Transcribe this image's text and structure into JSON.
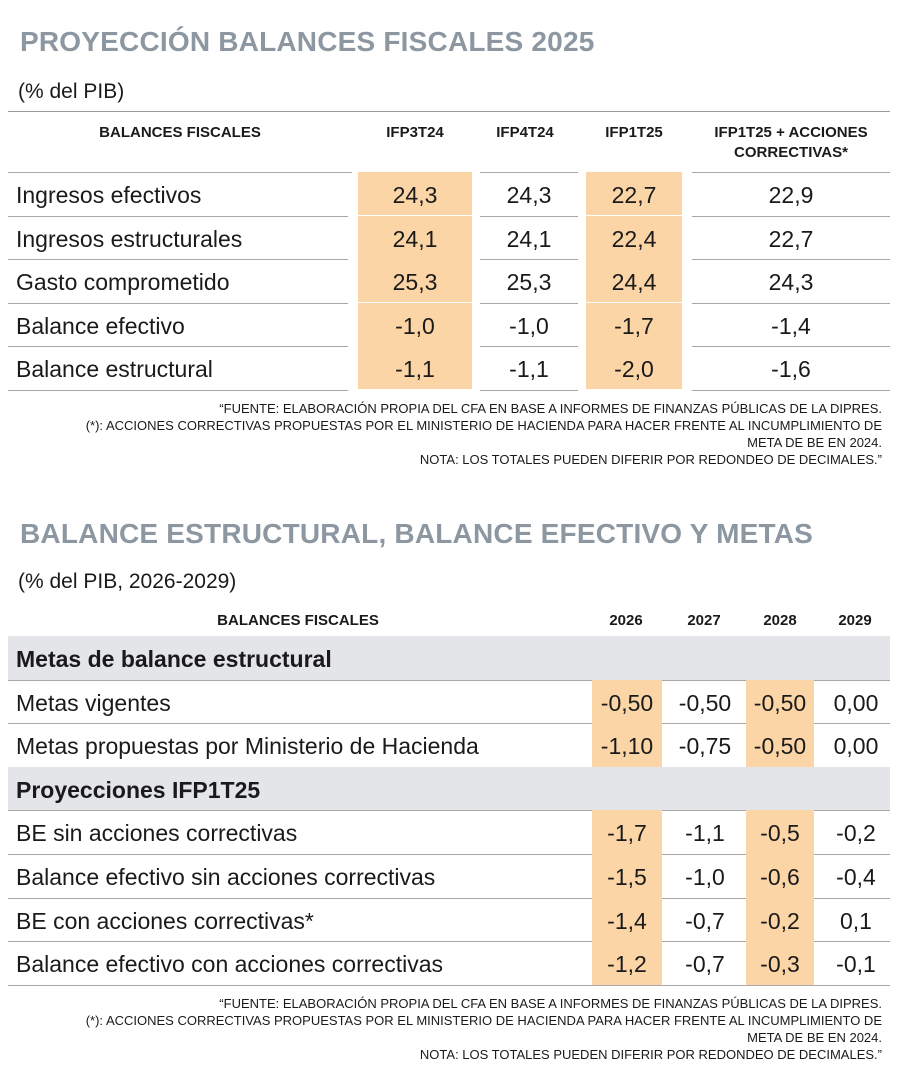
{
  "section1": {
    "title": "PROYECCIÓN BALANCES FISCALES 2025",
    "subtitle": "(% del PIB)",
    "headers": [
      "BALANCES FISCALES",
      "IFP3T24",
      "IFP4T24",
      "IFP1T25",
      "IFP1T25 + ACCIONES CORRECTIVAS*"
    ],
    "rows": [
      {
        "label": "Ingresos efectivos",
        "values": [
          "24,3",
          "24,3",
          "22,7",
          "22,9"
        ]
      },
      {
        "label": "Ingresos estructurales",
        "values": [
          "24,1",
          "24,1",
          "22,4",
          "22,7"
        ]
      },
      {
        "label": "Gasto comprometido",
        "values": [
          "25,3",
          "25,3",
          "24,4",
          "24,3"
        ]
      },
      {
        "label": "Balance efectivo",
        "values": [
          "-1,0",
          "-1,0",
          "-1,7",
          "-1,4"
        ]
      },
      {
        "label": "Balance estructural",
        "values": [
          "-1,1",
          "-1,1",
          "-2,0",
          "-1,6"
        ]
      }
    ],
    "notes": [
      "“FUENTE: ELABORACIÓN PROPIA DEL CFA EN BASE A INFORMES DE FINANZAS PÚBLICAS DE LA DIPRES.",
      "(*): ACCIONES CORRECTIVAS PROPUESTAS POR EL MINISTERIO DE HACIENDA PARA HACER FRENTE AL INCUMPLIMIENTO DE",
      "META DE BE EN 2024.",
      "NOTA: LOS TOTALES PUEDEN DIFERIR POR REDONDEO DE DECIMALES.”"
    ]
  },
  "section2": {
    "title": "BALANCE ESTRUCTURAL, BALANCE EFECTIVO Y METAS",
    "subtitle": "(% del PIB, 2026-2029)",
    "headers": [
      "BALANCES FISCALES",
      "2026",
      "2027",
      "2028",
      "2029"
    ],
    "groups": [
      {
        "title": "Metas de balance estructural",
        "rows": [
          {
            "label": "Metas vigentes",
            "values": [
              "-0,50",
              "-0,50",
              "-0,50",
              "0,00"
            ]
          },
          {
            "label": "Metas propuestas por Ministerio de Hacienda",
            "values": [
              "-1,10",
              "-0,75",
              "-0,50",
              "0,00"
            ]
          }
        ]
      },
      {
        "title": "Proyecciones IFP1T25",
        "rows": [
          {
            "label": "BE sin acciones correctivas",
            "values": [
              "-1,7",
              "-1,1",
              "-0,5",
              "-0,2"
            ]
          },
          {
            "label": "Balance efectivo sin acciones correctivas",
            "values": [
              "-1,5",
              "-1,0",
              "-0,6",
              "-0,4"
            ]
          },
          {
            "label": "BE con acciones correctivas*",
            "values": [
              "-1,4",
              "-0,7",
              "-0,2",
              "0,1"
            ]
          },
          {
            "label": "Balance efectivo con acciones correctivas",
            "values": [
              "-1,2",
              "-0,7",
              "-0,3",
              "-0,1"
            ]
          }
        ]
      }
    ],
    "notes": [
      "“FUENTE: ELABORACIÓN PROPIA DEL CFA EN BASE A INFORMES DE FINANZAS PÚBLICAS DE LA DIPRES.",
      "(*): ACCIONES CORRECTIVAS PROPUESTAS POR EL MINISTERIO DE HACIENDA PARA HACER FRENTE AL INCUMPLIMIENTO DE",
      "META DE BE EN 2024.",
      "NOTA: LOS TOTALES PUEDEN DIFERIR POR REDONDEO DE DECIMALES.”"
    ]
  },
  "colors": {
    "title": "#8c97a1",
    "highlight": "#fbd5a5",
    "section_band": "#e3e5e8"
  }
}
